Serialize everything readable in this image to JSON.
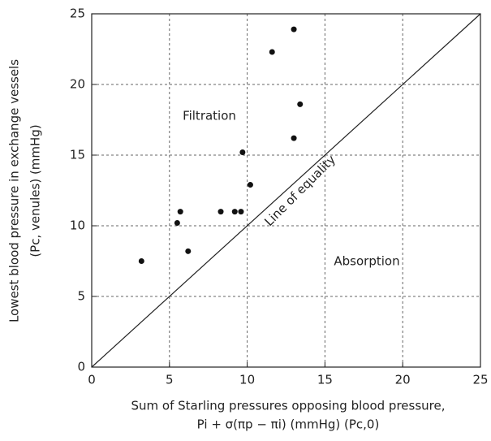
{
  "chart_data": {
    "type": "scatter",
    "ylabel": [
      "Lowest blood pressure in exchange vessels",
      "(Pc, venules) (mmHg)"
    ],
    "xlabel": [
      "Sum of Starling pressures opposing blood pressure,",
      "Pi + σ(πp − πi) (mmHg) (Pc,0)"
    ],
    "annotations": {
      "filtration": "Filtration",
      "absorption": "Absorption",
      "equality": "Line of equality"
    },
    "x": [
      3.2,
      6.2,
      5.5,
      5.7,
      8.3,
      9.2,
      9.6,
      9.7,
      10.2,
      11.6,
      13.0,
      13.0,
      13.4
    ],
    "values": [
      7.5,
      8.2,
      10.2,
      11.0,
      11.0,
      11.0,
      11.0,
      15.2,
      12.9,
      22.3,
      23.9,
      16.2,
      18.6
    ],
    "color": "#111111",
    "xlim": [
      0,
      25
    ],
    "ylim": [
      0,
      25
    ],
    "xticks": [
      0,
      5,
      10,
      15,
      20,
      25
    ],
    "yticks": [
      0,
      5,
      10,
      15,
      20,
      25
    ],
    "grid": true
  }
}
